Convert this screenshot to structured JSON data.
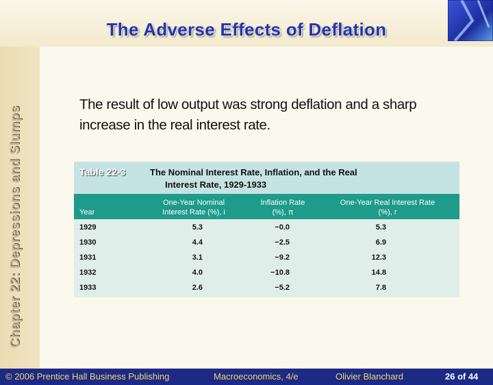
{
  "slide": {
    "title": "The Adverse Effects of Deflation",
    "chapter_label": "Chapter 22: Depressions and Slumps",
    "body": "The result of low output was strong deflation and a sharp increase in the real interest rate."
  },
  "table": {
    "tag": "Table 22-3",
    "title_line1": "The Nominal Interest Rate, Inflation, and the Real",
    "title_line2": "Interest Rate, 1929-1933",
    "columns": {
      "year": "Year",
      "nominal_1": "One-Year Nominal",
      "nominal_2": "Interest Rate (%), i",
      "inflation_1": "Inflation Rate",
      "inflation_2": "(%), π",
      "real_1": "One-Year Real Interest Rate",
      "real_2": "(%), r"
    },
    "rows": [
      {
        "year": "1929",
        "nominal": "5.3",
        "inflation": "−0.0",
        "real": "5.3"
      },
      {
        "year": "1930",
        "nominal": "4.4",
        "inflation": "−2.5",
        "real": "6.9"
      },
      {
        "year": "1931",
        "nominal": "3.1",
        "inflation": "−9.2",
        "real": "12.3"
      },
      {
        "year": "1932",
        "nominal": "4.0",
        "inflation": "−10.8",
        "real": "14.8"
      },
      {
        "year": "1933",
        "nominal": "2.6",
        "inflation": "−5.2",
        "real": "7.8"
      }
    ]
  },
  "footer": {
    "copyright": "© 2006 Prentice Hall Business Publishing",
    "book": "Macroeconomics, 4/e",
    "author": "Olivier Blanchard",
    "page": "26 of 44"
  }
}
